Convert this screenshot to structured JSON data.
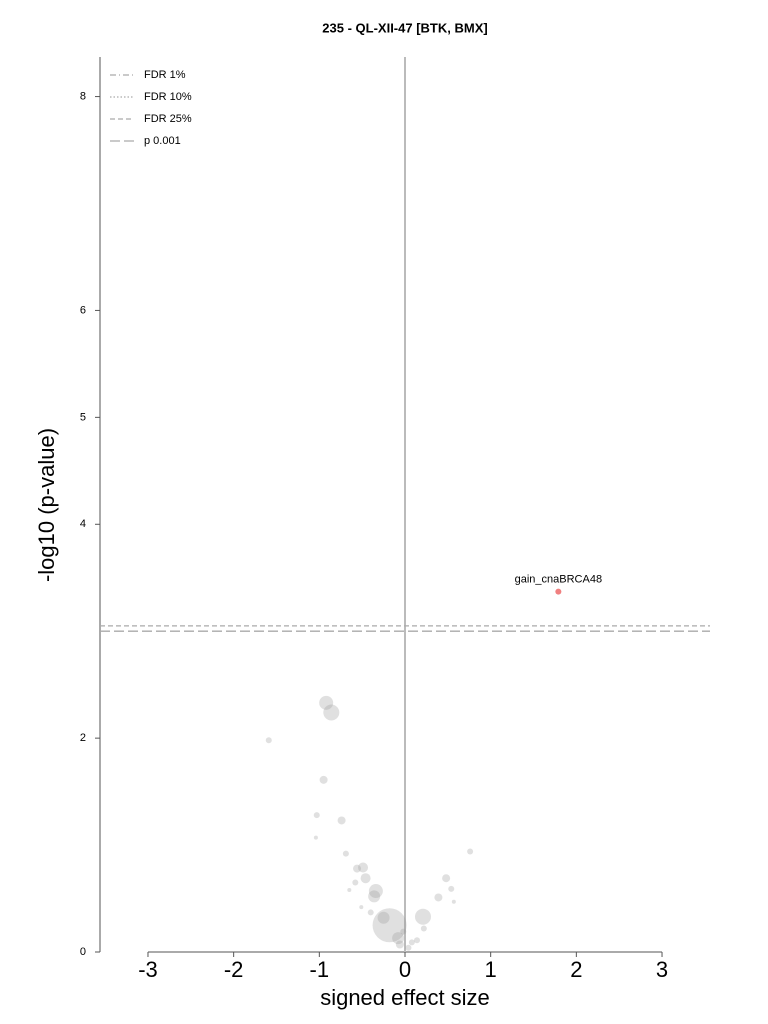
{
  "chart_data": {
    "type": "scatter",
    "title": "235 - QL-XII-47 [BTK, BMX]",
    "x_label": "signed effect size",
    "y_label": "-log10 (p-value)",
    "xlim": [
      -3.56,
      3.56
    ],
    "ylim": [
      0,
      8.37
    ],
    "xticks": [
      -3,
      -2,
      -1,
      0,
      1,
      2,
      3
    ],
    "yticks": [
      0,
      2,
      4,
      5,
      6,
      8
    ],
    "points": {
      "color": "#999999",
      "x": [
        -0.92,
        -0.86,
        -1.59,
        -0.95,
        -1.03,
        -0.74,
        -1.04,
        -0.69,
        0.76,
        -0.56,
        -0.49,
        -0.46,
        -0.58,
        -0.65,
        -0.34,
        -0.36,
        0.48,
        0.54,
        0.39,
        0.57,
        -0.51,
        -0.4,
        -0.25,
        0.21,
        -0.18,
        0.22,
        -0.08,
        -0.06,
        0.08,
        0.14,
        0.04,
        -0.02
      ],
      "values": [
        2.33,
        2.24,
        1.98,
        1.61,
        1.28,
        1.23,
        1.07,
        0.92,
        0.94,
        0.78,
        0.79,
        0.69,
        0.65,
        0.58,
        0.57,
        0.52,
        0.69,
        0.59,
        0.51,
        0.47,
        0.42,
        0.37,
        0.32,
        0.33,
        0.25,
        0.22,
        0.13,
        0.07,
        0.09,
        0.11,
        0.04,
        0.19
      ],
      "sizes": [
        7,
        8,
        3,
        4,
        3,
        4,
        2,
        3,
        3,
        4,
        5,
        5,
        3,
        2,
        7,
        6,
        4,
        3,
        4,
        2,
        2,
        3,
        6,
        8,
        17,
        3,
        6,
        4,
        3,
        3,
        3,
        3
      ]
    },
    "highlight": {
      "label": "gain_cnaBRCA48",
      "color": "#f08080",
      "x": 1.79,
      "value": 3.37,
      "size": 3
    },
    "reference_lines": [
      {
        "name": "FDR 1%",
        "style": "dashdot",
        "value": null
      },
      {
        "name": "FDR 10%",
        "style": "dotted",
        "value": null
      },
      {
        "name": "FDR 25%",
        "style": "dashed",
        "value": 3.05
      },
      {
        "name": "p 0.001",
        "style": "longdash",
        "value": 3.0
      }
    ],
    "legend": "upper left"
  }
}
